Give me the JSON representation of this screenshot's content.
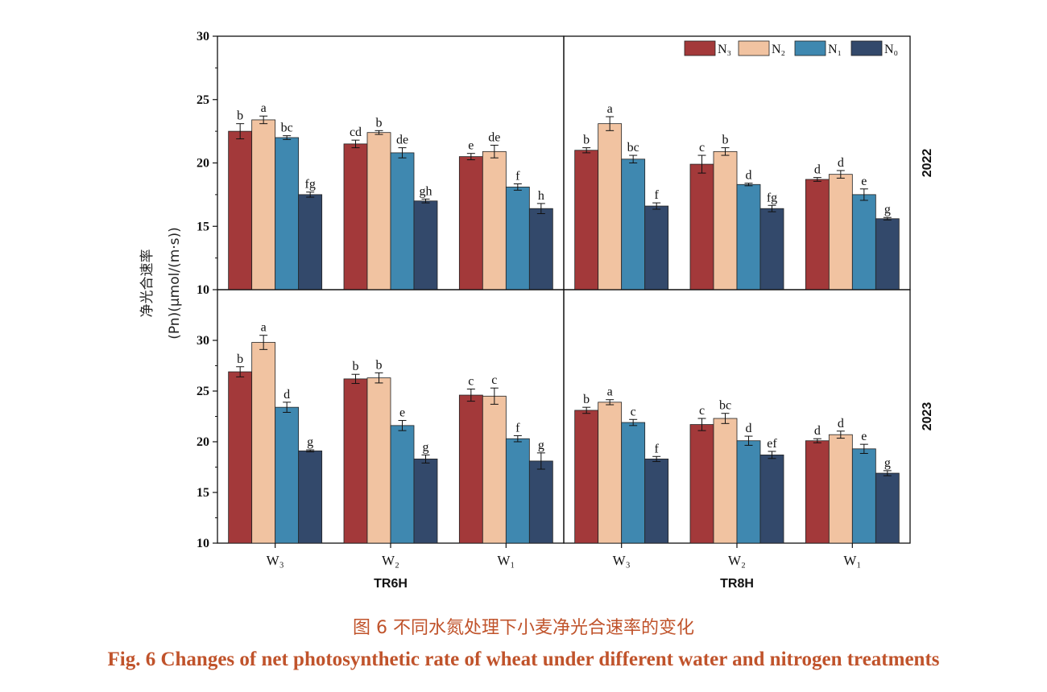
{
  "y_axis_label_line1": "净光合速率",
  "y_axis_label_line2": "(Pn)(μmol/(m·s))",
  "caption_cn": "图 6   不同水氮处理下小麦净光合速率的变化",
  "caption_en": "Fig. 6   Changes of net photosynthetic rate of wheat under different water and nitrogen treatments",
  "colors": {
    "N3": "#a3393a",
    "N2": "#f1c3a1",
    "N1": "#3f88b0",
    "N0": "#33496b"
  },
  "chart_data": [
    {
      "type": "bar",
      "panel": "TR6H-2022",
      "group": "TR6H",
      "year": "2022",
      "categories": [
        "W₃",
        "W₂",
        "W₁"
      ],
      "ylim": [
        10,
        30
      ],
      "yticks": [
        10,
        15,
        20,
        25,
        30
      ],
      "legend_position": "top-right",
      "series": [
        {
          "name": "N₃",
          "values": [
            22.5,
            21.5,
            20.5
          ],
          "errors": [
            0.6,
            0.3,
            0.25
          ],
          "letters": [
            "b",
            "cd",
            "e"
          ]
        },
        {
          "name": "N₂",
          "values": [
            23.4,
            22.4,
            20.9
          ],
          "errors": [
            0.3,
            0.15,
            0.5
          ],
          "letters": [
            "a",
            "b",
            "de"
          ]
        },
        {
          "name": "N₁",
          "values": [
            22.0,
            20.8,
            18.1
          ],
          "errors": [
            0.15,
            0.4,
            0.25
          ],
          "letters": [
            "bc",
            "de",
            "f"
          ]
        },
        {
          "name": "N₀",
          "values": [
            17.5,
            17.0,
            16.4
          ],
          "errors": [
            0.2,
            0.15,
            0.4
          ],
          "letters": [
            "fg",
            "gh",
            "h"
          ]
        }
      ]
    },
    {
      "type": "bar",
      "panel": "TR8H-2022",
      "group": "TR8H",
      "year": "2022",
      "categories": [
        "W₃",
        "W₂",
        "W₁"
      ],
      "ylim": [
        10,
        30
      ],
      "yticks": [
        10,
        15,
        20,
        25,
        30
      ],
      "series": [
        {
          "name": "N₃",
          "values": [
            21.0,
            19.9,
            18.7
          ],
          "errors": [
            0.2,
            0.7,
            0.15
          ],
          "letters": [
            "b",
            "c",
            "d"
          ]
        },
        {
          "name": "N₂",
          "values": [
            23.1,
            20.9,
            19.1
          ],
          "errors": [
            0.55,
            0.3,
            0.3
          ],
          "letters": [
            "a",
            "b",
            "d"
          ]
        },
        {
          "name": "N₁",
          "values": [
            20.3,
            18.3,
            17.5
          ],
          "errors": [
            0.3,
            0.1,
            0.45
          ],
          "letters": [
            "bc",
            "d",
            "e"
          ]
        },
        {
          "name": "N₀",
          "values": [
            16.6,
            16.4,
            15.6
          ],
          "errors": [
            0.25,
            0.25,
            0.1
          ],
          "letters": [
            "f",
            "fg",
            "g"
          ]
        }
      ]
    },
    {
      "type": "bar",
      "panel": "TR6H-2023",
      "group": "TR6H",
      "year": "2023",
      "categories": [
        "W₃",
        "W₂",
        "W₁"
      ],
      "ylim": [
        10,
        35
      ],
      "yticks": [
        10,
        15,
        20,
        25,
        30
      ],
      "series": [
        {
          "name": "N₃",
          "values": [
            26.9,
            26.2,
            24.6
          ],
          "errors": [
            0.5,
            0.45,
            0.6
          ],
          "letters": [
            "b",
            "b",
            "c"
          ]
        },
        {
          "name": "N₂",
          "values": [
            29.8,
            26.3,
            24.5
          ],
          "errors": [
            0.7,
            0.5,
            0.8
          ],
          "letters": [
            "a",
            "b",
            "c"
          ]
        },
        {
          "name": "N₁",
          "values": [
            23.4,
            21.6,
            20.3
          ],
          "errors": [
            0.5,
            0.5,
            0.3
          ],
          "letters": [
            "d",
            "e",
            "f"
          ]
        },
        {
          "name": "N₀",
          "values": [
            19.1,
            18.3,
            18.1
          ],
          "errors": [
            0.1,
            0.4,
            0.8
          ],
          "letters": [
            "g",
            "g",
            "g"
          ]
        }
      ]
    },
    {
      "type": "bar",
      "panel": "TR8H-2023",
      "group": "TR8H",
      "year": "2023",
      "categories": [
        "W₃",
        "W₂",
        "W₁"
      ],
      "ylim": [
        10,
        35
      ],
      "yticks": [
        10,
        15,
        20,
        25,
        30
      ],
      "series": [
        {
          "name": "N₃",
          "values": [
            23.1,
            21.7,
            20.1
          ],
          "errors": [
            0.3,
            0.6,
            0.2
          ],
          "letters": [
            "b",
            "c",
            "d"
          ]
        },
        {
          "name": "N₂",
          "values": [
            23.9,
            22.3,
            20.7
          ],
          "errors": [
            0.25,
            0.5,
            0.35
          ],
          "letters": [
            "a",
            "bc",
            "d"
          ]
        },
        {
          "name": "N₁",
          "values": [
            21.9,
            20.1,
            19.3
          ],
          "errors": [
            0.3,
            0.45,
            0.45
          ],
          "letters": [
            "c",
            "d",
            "e"
          ]
        },
        {
          "name": "N₀",
          "values": [
            18.3,
            18.7,
            16.9
          ],
          "errors": [
            0.25,
            0.35,
            0.25
          ],
          "letters": [
            "f",
            "ef",
            "g"
          ]
        }
      ]
    }
  ]
}
